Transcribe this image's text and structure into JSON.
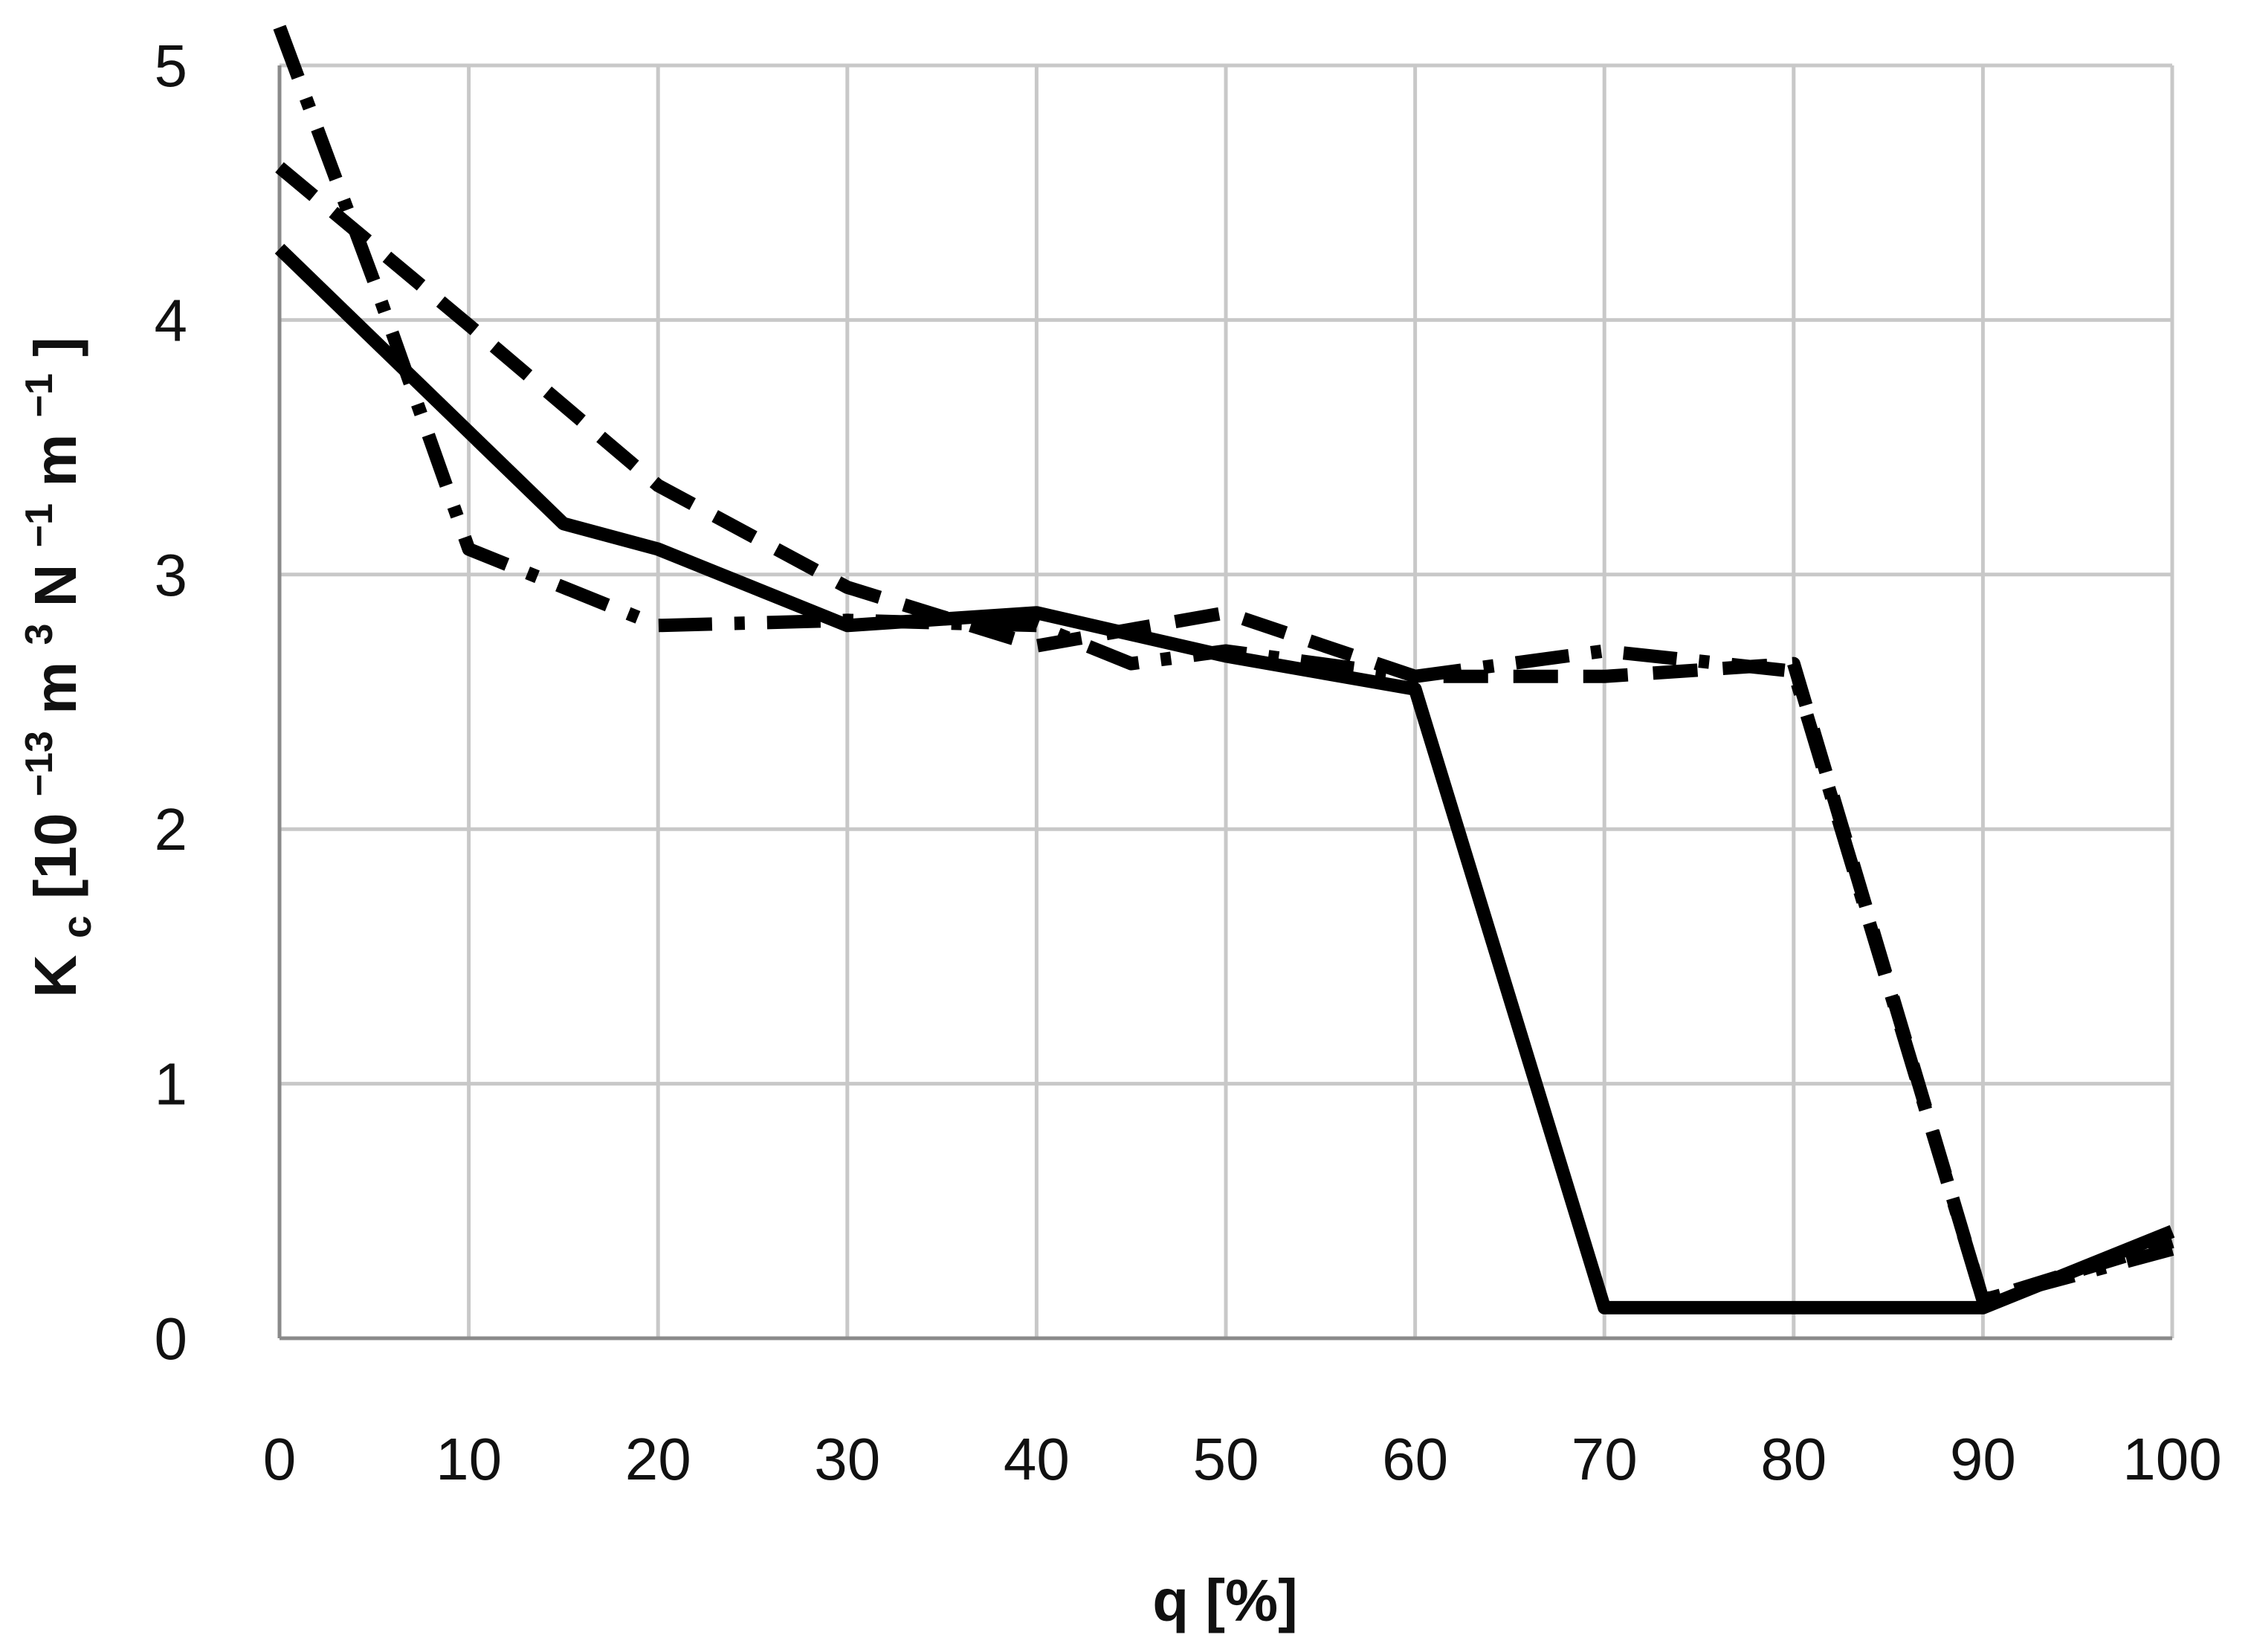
{
  "chart_data": {
    "type": "line",
    "title": "",
    "xlabel": "q [%]",
    "ylabel": {
      "main": "K",
      "sub": "c",
      "unit_open": " [10",
      "exp1": "−13",
      "m1": "m",
      "exp2": "3",
      "n": "N",
      "exp3": "−1",
      "m2": "m",
      "exp4": "−1",
      "unit_close": "]"
    },
    "xlim": [
      0,
      100
    ],
    "ylim": [
      0,
      5
    ],
    "xticks": [
      "0",
      "10",
      "20",
      "30",
      "40",
      "50",
      "60",
      "70",
      "80",
      "90",
      "100"
    ],
    "yticks": [
      "0",
      "1",
      "2",
      "3",
      "4",
      "5"
    ],
    "grid": true,
    "legend": "none",
    "colors": {
      "series": "#000000",
      "grid": "#c8c8c8",
      "axis": "#8a8a8a"
    },
    "series": [
      {
        "style": "solid",
        "x": [
          0,
          15,
          20,
          30,
          40,
          50,
          60,
          70,
          80,
          90,
          100
        ],
        "y": [
          4.28,
          3.2,
          3.1,
          2.8,
          2.85,
          2.68,
          2.55,
          0.12,
          0.12,
          0.12,
          0.42
        ]
      },
      {
        "style": "dashed",
        "x": [
          0,
          10,
          20,
          30,
          40,
          50,
          60,
          70,
          80,
          90,
          100
        ],
        "y": [
          4.6,
          3.98,
          3.35,
          2.95,
          2.72,
          2.85,
          2.6,
          2.6,
          2.65,
          0.15,
          0.38
        ]
      },
      {
        "style": "dash-dot",
        "x": [
          0,
          5,
          10,
          20,
          30,
          40,
          45,
          50,
          60,
          70,
          80,
          90,
          100
        ],
        "y": [
          5.15,
          4.15,
          3.1,
          2.8,
          2.82,
          2.8,
          2.65,
          2.7,
          2.6,
          2.7,
          2.62,
          0.15,
          0.35
        ]
      }
    ]
  }
}
